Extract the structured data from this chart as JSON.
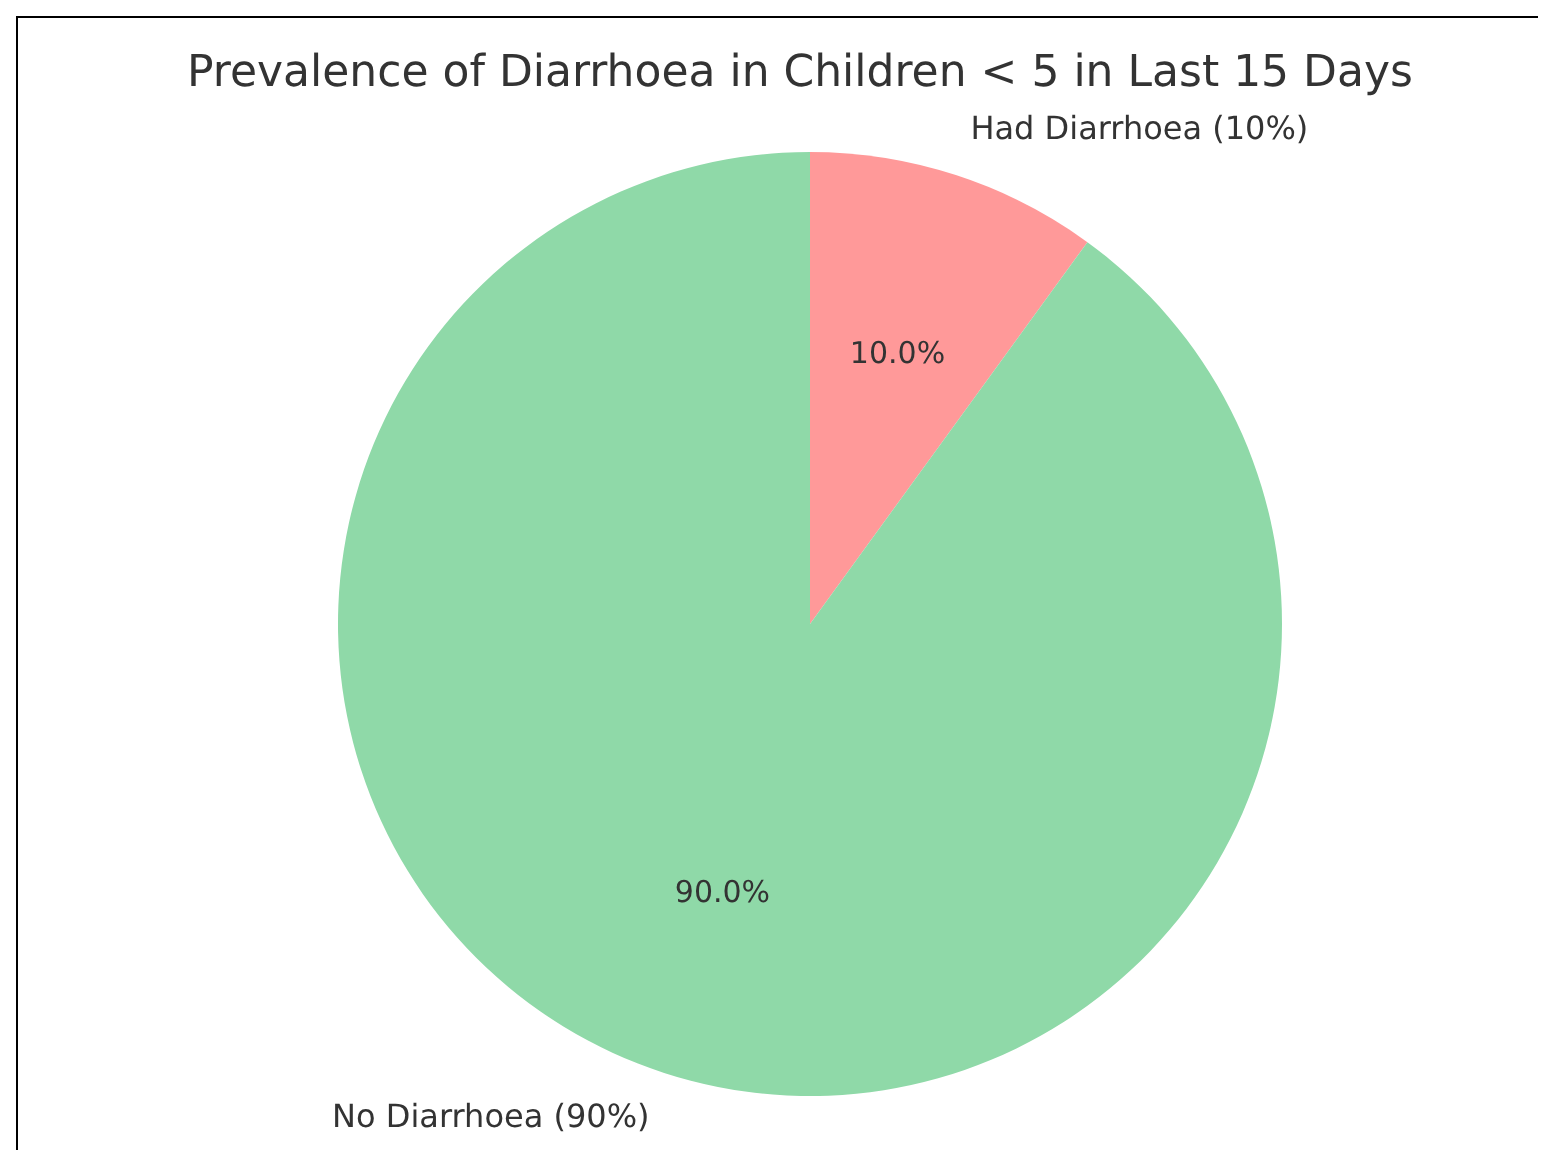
{
  "chart_data": {
    "type": "pie",
    "title": "Prevalence of Diarrhoea in Children < 5 in Last 15 Days",
    "categories": [
      "Had Diarrhoea (10%)",
      "No Diarrhoea (90%)"
    ],
    "values": [
      10,
      90
    ],
    "colors": [
      "#ff9999",
      "#8fd9a8"
    ],
    "value_labels": [
      "10.0%",
      "90.0%"
    ],
    "legend": false
  }
}
